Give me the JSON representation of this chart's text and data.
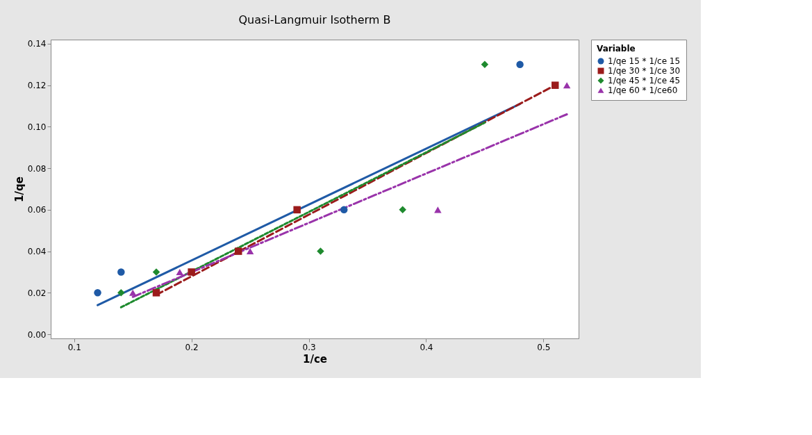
{
  "chart_data": {
    "type": "scatter",
    "title": "Quasi-Langmuir Isotherm B",
    "xlabel": "1/ce",
    "ylabel": "1/qe",
    "legend_title": "Variable",
    "legend": "top right",
    "grid": false,
    "xlim": [
      0.08,
      0.53
    ],
    "xticks": [
      0.1,
      0.2,
      0.3,
      0.4,
      0.5
    ],
    "ylim": [
      -0.002,
      0.142
    ],
    "yticks": [
      {
        "value": 0,
        "label": "0.00"
      },
      {
        "value": 0.02,
        "label": "0.02"
      },
      {
        "value": 0.04,
        "label": "0.04"
      },
      {
        "value": 0.06,
        "label": "0.06"
      },
      {
        "value": 0.08,
        "label": "0.08"
      },
      {
        "value": 0.1,
        "label": "0.10"
      },
      {
        "value": 0.12,
        "label": "0.12"
      },
      {
        "value": 0.14,
        "label": "0.14"
      }
    ],
    "series": [
      {
        "name": "1/qe 15 * 1/ce 15",
        "marker": "circle",
        "color": "#1f5aa6",
        "x": [
          0.12,
          0.14,
          0.33,
          0.48
        ],
        "values": [
          0.02,
          0.03,
          0.06,
          0.13
        ]
      },
      {
        "name": "1/qe 30 * 1/ce 30",
        "marker": "square",
        "color": "#9b1b1b",
        "x": [
          0.17,
          0.2,
          0.24,
          0.29,
          0.51
        ],
        "values": [
          0.02,
          0.03,
          0.04,
          0.06,
          0.12
        ]
      },
      {
        "name": "1/qe 45 * 1/ce 45",
        "marker": "diamond",
        "color": "#1e8a2e",
        "x": [
          0.14,
          0.17,
          0.31,
          0.38,
          0.45
        ],
        "values": [
          0.02,
          0.03,
          0.04,
          0.06,
          0.13
        ]
      },
      {
        "name": "1/qe 60 * 1/ce60",
        "marker": "triangle",
        "color": "#9933aa",
        "x": [
          0.15,
          0.19,
          0.25,
          0.41,
          0.52
        ],
        "values": [
          0.02,
          0.03,
          0.04,
          0.06,
          0.12
        ]
      },
      {
        "type": "line",
        "line_style": "solid",
        "color": "#1f5aa6",
        "x": [
          0.12,
          0.48
        ],
        "values": [
          0.014,
          0.111
        ]
      },
      {
        "type": "line",
        "line_style": "dashed",
        "color": "#9b1b1b",
        "x": [
          0.17,
          0.51
        ],
        "values": [
          0.019,
          0.12
        ]
      },
      {
        "type": "line",
        "line_style": "dotted",
        "color": "#1e8a2e",
        "x": [
          0.14,
          0.45
        ],
        "values": [
          0.013,
          0.102
        ]
      },
      {
        "type": "line",
        "line_style": "dashdot",
        "color": "#9933aa",
        "x": [
          0.15,
          0.52
        ],
        "values": [
          0.018,
          0.106
        ]
      }
    ]
  }
}
